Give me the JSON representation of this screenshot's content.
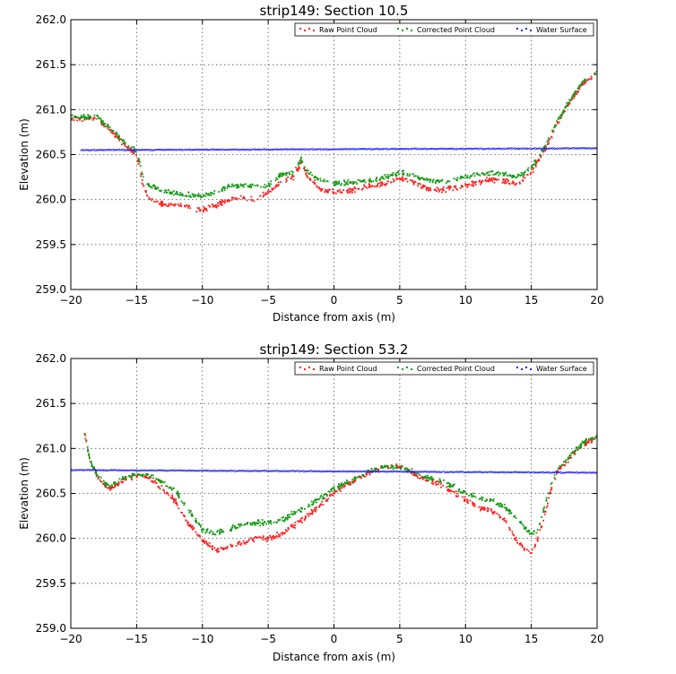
{
  "chart_data": [
    {
      "type": "scatter",
      "title": "strip149: Section 10.5",
      "xlabel": "Distance from axis (m)",
      "ylabel": "Elevation (m)",
      "xlim": [
        -20,
        20
      ],
      "ylim": [
        259.0,
        262.0
      ],
      "xticks": [
        "−20",
        "−15",
        "−10",
        "−5",
        "0",
        "5",
        "10",
        "15",
        "20"
      ],
      "yticks": [
        "259.0",
        "259.5",
        "260.0",
        "260.5",
        "261.0",
        "261.5",
        "262.0"
      ],
      "grid": true,
      "legend_position": "top-right",
      "series": [
        {
          "name": "Raw Point Cloud",
          "color": "#ff2020",
          "x": [
            -20,
            -18,
            -16.5,
            -15.5,
            -15,
            -14.5,
            -14,
            -13,
            -12,
            -11,
            -10,
            -9,
            -8,
            -7,
            -6,
            -5,
            -4,
            -3,
            -2.5,
            -2,
            -1,
            0,
            1,
            2,
            3,
            4,
            5,
            6,
            7,
            8,
            9,
            10,
            11,
            12,
            13,
            14,
            15,
            16,
            17,
            18,
            19,
            20
          ],
          "y": [
            260.9,
            260.9,
            260.7,
            260.55,
            260.5,
            260.15,
            260.0,
            259.95,
            259.93,
            259.92,
            259.88,
            259.93,
            260.0,
            260.02,
            260.0,
            260.08,
            260.2,
            260.25,
            260.42,
            260.25,
            260.12,
            260.08,
            260.1,
            260.13,
            260.15,
            260.18,
            260.23,
            260.2,
            260.13,
            260.1,
            260.13,
            260.15,
            260.2,
            260.22,
            260.2,
            260.18,
            260.3,
            260.55,
            260.85,
            261.1,
            261.3,
            261.4
          ]
        },
        {
          "name": "Corrected Point Cloud",
          "color": "#159a15",
          "x": [
            -20,
            -18,
            -16.5,
            -15.5,
            -15,
            -14.5,
            -14,
            -13,
            -12,
            -11,
            -10,
            -9,
            -8,
            -7,
            -6,
            -5,
            -4,
            -3,
            -2.5,
            -2,
            -1,
            0,
            1,
            2,
            3,
            4,
            5,
            6,
            7,
            8,
            9,
            10,
            11,
            12,
            13,
            14,
            15,
            16,
            17,
            18,
            19,
            20
          ],
          "y": [
            260.92,
            260.92,
            260.72,
            260.58,
            260.55,
            260.25,
            260.15,
            260.1,
            260.07,
            260.05,
            260.03,
            260.08,
            260.15,
            260.16,
            260.14,
            260.15,
            260.28,
            260.3,
            260.45,
            260.3,
            260.22,
            260.18,
            260.18,
            260.2,
            260.22,
            260.25,
            260.3,
            260.27,
            260.22,
            260.2,
            260.22,
            260.25,
            260.28,
            260.3,
            260.28,
            260.26,
            260.35,
            260.58,
            260.88,
            261.12,
            261.32,
            261.42
          ]
        },
        {
          "name": "Water Surface",
          "color": "#2020ff",
          "x": [
            -19.2,
            20
          ],
          "y": [
            260.55,
            260.57
          ]
        }
      ]
    },
    {
      "type": "scatter",
      "title": "strip149: Section 53.2",
      "xlabel": "Distance from axis (m)",
      "ylabel": "Elevation (m)",
      "xlim": [
        -20,
        20
      ],
      "ylim": [
        259.0,
        262.0
      ],
      "xticks": [
        "−20",
        "−15",
        "−10",
        "−5",
        "0",
        "5",
        "10",
        "15",
        "20"
      ],
      "yticks": [
        "259.0",
        "259.5",
        "260.0",
        "260.5",
        "261.0",
        "261.5",
        "262.0"
      ],
      "grid": true,
      "legend_position": "top-right",
      "series": [
        {
          "name": "Raw Point Cloud",
          "color": "#ff2020",
          "x": [
            -19,
            -18.5,
            -18,
            -17.5,
            -17,
            -16,
            -15,
            -14,
            -13,
            -12,
            -11,
            -10,
            -9,
            -8,
            -7,
            -6,
            -5,
            -4,
            -3,
            -2,
            -1,
            0,
            1,
            2,
            3,
            4,
            5,
            6,
            7,
            8,
            9,
            10,
            11,
            12,
            13,
            14,
            15,
            15.5,
            16,
            16.5,
            17,
            18,
            19,
            20
          ],
          "y": [
            261.2,
            260.85,
            260.7,
            260.6,
            260.55,
            260.65,
            260.7,
            260.67,
            260.55,
            260.4,
            260.15,
            259.98,
            259.87,
            259.9,
            259.95,
            260.0,
            260.0,
            260.05,
            260.15,
            260.25,
            260.38,
            260.5,
            260.6,
            260.68,
            260.75,
            260.8,
            260.8,
            260.72,
            260.65,
            260.6,
            260.52,
            260.42,
            260.35,
            260.3,
            260.2,
            259.95,
            259.83,
            260.0,
            260.25,
            260.55,
            260.75,
            260.9,
            261.05,
            261.12
          ]
        },
        {
          "name": "Corrected Point Cloud",
          "color": "#159a15",
          "x": [
            -19,
            -18.5,
            -18,
            -17.5,
            -17,
            -16,
            -15,
            -14,
            -13,
            -12,
            -11,
            -10,
            -9,
            -8,
            -7,
            -6,
            -5,
            -4,
            -3,
            -2,
            -1,
            0,
            1,
            2,
            3,
            4,
            5,
            6,
            7,
            8,
            9,
            10,
            11,
            12,
            13,
            14,
            15,
            15.5,
            16,
            16.5,
            17,
            18,
            19,
            20
          ],
          "y": [
            261.2,
            260.85,
            260.7,
            260.62,
            260.58,
            260.67,
            260.72,
            260.7,
            260.62,
            260.52,
            260.3,
            260.1,
            260.05,
            260.1,
            260.15,
            260.18,
            260.18,
            260.2,
            260.28,
            260.35,
            260.45,
            260.55,
            260.62,
            260.7,
            260.76,
            260.8,
            260.8,
            260.74,
            260.68,
            260.65,
            260.58,
            260.5,
            260.45,
            260.42,
            260.35,
            260.2,
            260.05,
            260.1,
            260.35,
            260.6,
            260.78,
            260.92,
            261.07,
            261.14
          ]
        },
        {
          "name": "Water Surface",
          "color": "#2020ff",
          "x": [
            -20,
            20
          ],
          "y": [
            260.76,
            260.73
          ]
        }
      ]
    }
  ]
}
